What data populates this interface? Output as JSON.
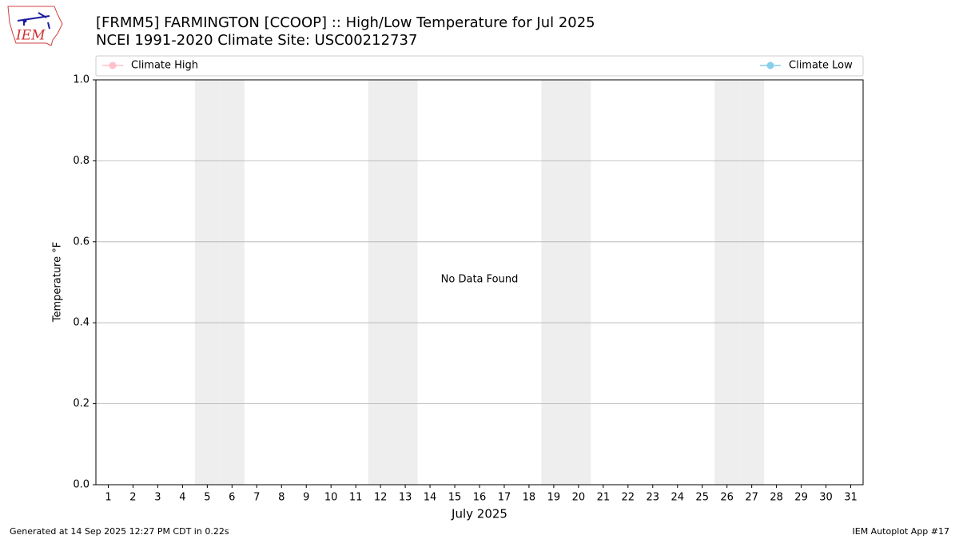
{
  "chart_data": {
    "type": "line",
    "title": "[FRMM5] FARMINGTON [CCOOP] :: High/Low Temperature for Jul 2025",
    "subtitle": "NCEI 1991-2020 Climate Site: USC00212737",
    "xlabel": "July 2025",
    "ylabel": "Temperature $^\\circ$F",
    "annotation": "No Data Found",
    "series": [
      {
        "name": "Climate High",
        "color": "#ffc0cb",
        "values": []
      },
      {
        "name": "Climate Low",
        "color": "#87ceeb",
        "values": []
      }
    ],
    "xlim": [
      0.5,
      31.5
    ],
    "xticks": [
      1,
      2,
      3,
      4,
      5,
      6,
      7,
      8,
      9,
      10,
      11,
      12,
      13,
      14,
      15,
      16,
      17,
      18,
      19,
      20,
      21,
      22,
      23,
      24,
      25,
      26,
      27,
      28,
      29,
      30,
      31
    ],
    "ylim": [
      0,
      1
    ],
    "yticks": [
      {
        "value": 0,
        "label": "0.0"
      },
      {
        "value": 0.2,
        "label": "0.2"
      },
      {
        "value": 0.4,
        "label": "0.4"
      },
      {
        "value": 0.6,
        "label": "0.6"
      },
      {
        "value": 0.8,
        "label": "0.8"
      },
      {
        "value": 1,
        "label": "1.0"
      }
    ],
    "weekend_days": [
      5,
      6,
      12,
      13,
      19,
      20,
      26,
      27
    ],
    "grid": true
  },
  "logo_text": "IEM",
  "footer_left": "Generated at 14 Sep 2025 12:27 PM CDT in 0.22s",
  "footer_right": "IEM Autoplot App #17"
}
